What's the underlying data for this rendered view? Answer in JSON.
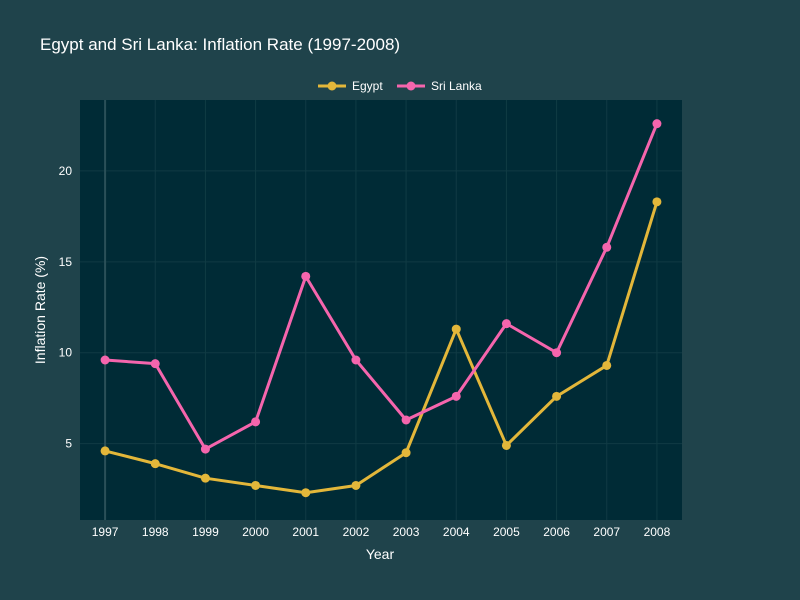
{
  "chart_data": {
    "type": "line",
    "title": "Egypt and Sri Lanka: Inflation Rate (1997-2008)",
    "xlabel": "Year",
    "ylabel": "Inflation Rate (%)",
    "categories": [
      "1997",
      "1998",
      "1999",
      "2000",
      "2001",
      "2002",
      "2003",
      "2004",
      "2005",
      "2006",
      "2007",
      "2008"
    ],
    "y_ticks": [
      5,
      10,
      15,
      20
    ],
    "ylim": [
      0.8,
      23.9
    ],
    "grid": true,
    "legend_position": "top-center",
    "series": [
      {
        "name": "Egypt",
        "color": "#e3b73a",
        "values": [
          4.6,
          3.9,
          3.1,
          2.7,
          2.3,
          2.7,
          4.5,
          11.3,
          4.9,
          7.6,
          9.3,
          18.3
        ]
      },
      {
        "name": "Sri Lanka",
        "color": "#f565ad",
        "values": [
          9.6,
          9.4,
          4.7,
          6.2,
          14.2,
          9.6,
          6.3,
          7.6,
          11.6,
          10.0,
          15.8,
          22.6
        ]
      }
    ]
  },
  "colors": {
    "background": "#1f434b",
    "plot_background": "#002b36",
    "grid": "#103b44",
    "text": "#ffffff"
  }
}
